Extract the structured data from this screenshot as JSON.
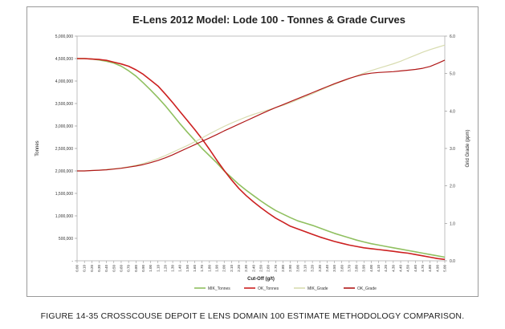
{
  "caption": "FIGURE 14-35 CROSSCOUSE DEPOIT E LENS DOMAIN 100 ESTIMATE METHODOLOGY COMPARISON.",
  "chart_data": {
    "type": "line",
    "title": "E-Lens 2012 Model: Lode 100 - Tonnes & Grade Curves",
    "xlabel": "Cut-Off (g/t)",
    "ylabel": "Tonnes",
    "y2label": "Grid Grade (ppm)",
    "x": [
      0.0,
      0.1,
      0.2,
      0.3,
      0.4,
      0.5,
      0.6,
      0.7,
      0.8,
      0.9,
      1.0,
      1.1,
      1.2,
      1.3,
      1.4,
      1.5,
      1.6,
      1.7,
      1.8,
      1.9,
      2.0,
      2.1,
      2.2,
      2.3,
      2.4,
      2.5,
      2.6,
      2.7,
      2.8,
      2.9,
      3.0,
      3.1,
      3.2,
      3.3,
      3.4,
      3.5,
      3.6,
      3.7,
      3.8,
      3.9,
      4.0,
      4.1,
      4.2,
      4.3,
      4.4,
      4.5,
      4.6,
      4.7,
      4.8,
      4.9,
      5.0
    ],
    "x_tick_labels": [
      "0.00",
      "0.10",
      "0.20",
      "0.30",
      "0.40",
      "0.50",
      "0.60",
      "0.70",
      "0.80",
      "0.90",
      "1.00",
      "1.10",
      "1.20",
      "1.30",
      "1.40",
      "1.50",
      "1.60",
      "1.70",
      "1.80",
      "1.90",
      "2.00",
      "2.10",
      "2.20",
      "2.30",
      "2.40",
      "2.50",
      "2.60",
      "2.70",
      "2.80",
      "2.90",
      "3.00",
      "3.10",
      "3.20",
      "3.30",
      "3.40",
      "3.50",
      "3.60",
      "3.70",
      "3.80",
      "3.90",
      "4.00",
      "4.10",
      "4.20",
      "4.30",
      "4.40",
      "4.50",
      "4.60",
      "4.70",
      "4.80",
      "4.90",
      "5.00"
    ],
    "ylim": [
      0,
      5000000
    ],
    "y_tick_labels": [
      "-",
      "500,000",
      "1,000,000",
      "1,500,000",
      "2,000,000",
      "2,500,000",
      "3,000,000",
      "3,500,000",
      "4,000,000",
      "4,500,000",
      "5,000,000"
    ],
    "y2lim": [
      0,
      6
    ],
    "y2_tick_labels": [
      "0.0",
      "1.0",
      "2.0",
      "3.0",
      "4.0",
      "5.0",
      "6.0"
    ],
    "grid": false,
    "legend": "bottom",
    "series": [
      {
        "name": "MIK_Tonnes",
        "axis": "left",
        "color": "#90c060",
        "values": [
          4500000,
          4500000,
          4490000,
          4470000,
          4440000,
          4400000,
          4330000,
          4230000,
          4110000,
          3960000,
          3800000,
          3630000,
          3450000,
          3250000,
          3050000,
          2860000,
          2680000,
          2500000,
          2340000,
          2180000,
          2000000,
          1850000,
          1700000,
          1570000,
          1450000,
          1330000,
          1220000,
          1120000,
          1040000,
          960000,
          890000,
          840000,
          790000,
          730000,
          670000,
          610000,
          560000,
          510000,
          460000,
          420000,
          380000,
          350000,
          320000,
          290000,
          260000,
          230000,
          200000,
          170000,
          140000,
          110000,
          80000
        ]
      },
      {
        "name": "OK_Tonnes",
        "axis": "left",
        "color": "#cc2020",
        "values": [
          4500000,
          4500000,
          4490000,
          4480000,
          4460000,
          4420000,
          4380000,
          4330000,
          4250000,
          4150000,
          4020000,
          3890000,
          3710000,
          3520000,
          3320000,
          3120000,
          2920000,
          2710000,
          2480000,
          2240000,
          2010000,
          1800000,
          1610000,
          1450000,
          1310000,
          1180000,
          1060000,
          950000,
          860000,
          770000,
          710000,
          650000,
          590000,
          530000,
          480000,
          430000,
          390000,
          350000,
          320000,
          290000,
          270000,
          250000,
          230000,
          210000,
          190000,
          170000,
          140000,
          110000,
          80000,
          50000,
          30000
        ]
      },
      {
        "name": "MIK_Grade",
        "axis": "right",
        "color": "#d8dcb0",
        "values": [
          2.4,
          2.4,
          2.41,
          2.42,
          2.44,
          2.46,
          2.48,
          2.51,
          2.55,
          2.6,
          2.66,
          2.73,
          2.81,
          2.9,
          2.99,
          3.08,
          3.18,
          3.28,
          3.39,
          3.49,
          3.59,
          3.68,
          3.76,
          3.84,
          3.91,
          3.97,
          4.03,
          4.09,
          4.15,
          4.22,
          4.3,
          4.38,
          4.46,
          4.55,
          4.63,
          4.71,
          4.79,
          4.86,
          4.94,
          5.01,
          5.08,
          5.14,
          5.2,
          5.26,
          5.33,
          5.41,
          5.49,
          5.57,
          5.64,
          5.7,
          5.76
        ]
      },
      {
        "name": "OK_Grade",
        "axis": "right",
        "color": "#b01818",
        "values": [
          2.4,
          2.4,
          2.41,
          2.42,
          2.43,
          2.45,
          2.47,
          2.5,
          2.53,
          2.57,
          2.62,
          2.68,
          2.75,
          2.83,
          2.92,
          3.01,
          3.1,
          3.19,
          3.28,
          3.37,
          3.47,
          3.56,
          3.65,
          3.74,
          3.83,
          3.92,
          4.01,
          4.09,
          4.17,
          4.25,
          4.33,
          4.41,
          4.49,
          4.57,
          4.65,
          4.73,
          4.8,
          4.87,
          4.93,
          4.98,
          5.01,
          5.03,
          5.04,
          5.05,
          5.07,
          5.09,
          5.11,
          5.14,
          5.19,
          5.27,
          5.36
        ]
      }
    ]
  }
}
